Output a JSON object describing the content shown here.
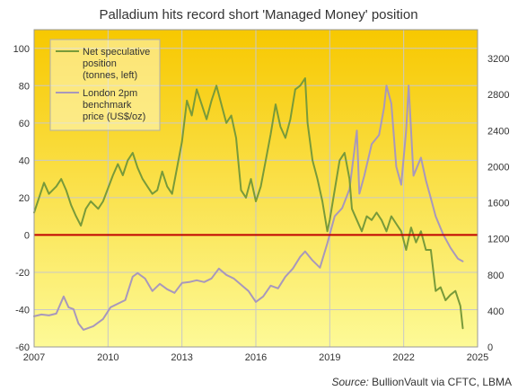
{
  "chart_data": {
    "type": "line",
    "title": "Palladium hits record short 'Managed Money' position",
    "source_prefix": "Source:",
    "source_text": " BullionVault via CFTC, LBMA",
    "x_range": [
      2007,
      2025
    ],
    "x_ticks": [
      "2007",
      "2010",
      "2013",
      "2016",
      "2019",
      "2022",
      "2025"
    ],
    "y_left": {
      "range": [
        -60,
        110
      ],
      "ticks": [
        "-60",
        "-40",
        "-20",
        "0",
        "20",
        "40",
        "60",
        "80",
        "100"
      ]
    },
    "y_right": {
      "range": [
        0,
        3520
      ],
      "ticks": [
        "0",
        "400",
        "800",
        "1200",
        "1600",
        "2000",
        "2400",
        "2800",
        "3200"
      ]
    },
    "zero_line": {
      "value": 0,
      "color": "#c00000"
    },
    "grid": true,
    "background_gradient": [
      "#f7c800",
      "#fdfa97"
    ],
    "legend_position": "top-left",
    "series": [
      {
        "name": "Net speculative position (tonnes, left)",
        "name_lines": [
          "Net speculative",
          "position",
          "(tonnes, left)"
        ],
        "axis": "left",
        "color": "#789a3a",
        "points": [
          [
            2007.0,
            12
          ],
          [
            2007.2,
            20
          ],
          [
            2007.4,
            28
          ],
          [
            2007.6,
            22
          ],
          [
            2007.9,
            26
          ],
          [
            2008.1,
            30
          ],
          [
            2008.3,
            24
          ],
          [
            2008.5,
            16
          ],
          [
            2008.7,
            10
          ],
          [
            2008.9,
            5
          ],
          [
            2009.1,
            14
          ],
          [
            2009.3,
            18
          ],
          [
            2009.6,
            14
          ],
          [
            2009.8,
            18
          ],
          [
            2010.0,
            25
          ],
          [
            2010.2,
            32
          ],
          [
            2010.4,
            38
          ],
          [
            2010.6,
            32
          ],
          [
            2010.8,
            40
          ],
          [
            2011.0,
            44
          ],
          [
            2011.2,
            36
          ],
          [
            2011.4,
            30
          ],
          [
            2011.6,
            26
          ],
          [
            2011.8,
            22
          ],
          [
            2012.0,
            24
          ],
          [
            2012.2,
            34
          ],
          [
            2012.4,
            26
          ],
          [
            2012.6,
            22
          ],
          [
            2012.8,
            36
          ],
          [
            2013.0,
            50
          ],
          [
            2013.2,
            72
          ],
          [
            2013.4,
            64
          ],
          [
            2013.6,
            78
          ],
          [
            2013.8,
            70
          ],
          [
            2014.0,
            62
          ],
          [
            2014.2,
            72
          ],
          [
            2014.4,
            80
          ],
          [
            2014.6,
            70
          ],
          [
            2014.8,
            60
          ],
          [
            2015.0,
            64
          ],
          [
            2015.2,
            52
          ],
          [
            2015.4,
            24
          ],
          [
            2015.6,
            20
          ],
          [
            2015.8,
            30
          ],
          [
            2016.0,
            18
          ],
          [
            2016.2,
            26
          ],
          [
            2016.4,
            40
          ],
          [
            2016.6,
            54
          ],
          [
            2016.8,
            70
          ],
          [
            2017.0,
            58
          ],
          [
            2017.2,
            52
          ],
          [
            2017.4,
            62
          ],
          [
            2017.6,
            78
          ],
          [
            2017.8,
            80
          ],
          [
            2018.0,
            84
          ],
          [
            2018.1,
            60
          ],
          [
            2018.3,
            40
          ],
          [
            2018.5,
            30
          ],
          [
            2018.7,
            18
          ],
          [
            2018.9,
            2
          ],
          [
            2019.0,
            8
          ],
          [
            2019.2,
            24
          ],
          [
            2019.4,
            40
          ],
          [
            2019.6,
            44
          ],
          [
            2019.8,
            30
          ],
          [
            2019.9,
            14
          ],
          [
            2020.1,
            8
          ],
          [
            2020.3,
            2
          ],
          [
            2020.5,
            10
          ],
          [
            2020.7,
            8
          ],
          [
            2020.9,
            12
          ],
          [
            2021.1,
            8
          ],
          [
            2021.3,
            2
          ],
          [
            2021.5,
            10
          ],
          [
            2021.7,
            6
          ],
          [
            2021.9,
            2
          ],
          [
            2022.1,
            -8
          ],
          [
            2022.3,
            4
          ],
          [
            2022.5,
            -4
          ],
          [
            2022.7,
            2
          ],
          [
            2022.9,
            -8
          ],
          [
            2023.1,
            -8
          ],
          [
            2023.3,
            -30
          ],
          [
            2023.5,
            -28
          ],
          [
            2023.7,
            -35
          ],
          [
            2023.9,
            -32
          ],
          [
            2024.1,
            -30
          ],
          [
            2024.3,
            -38
          ],
          [
            2024.4,
            -50
          ]
        ]
      },
      {
        "name": "London 2pm benchmark price (US$/oz)",
        "name_lines": [
          "London 2pm",
          "benchmark",
          "price (US$/oz)"
        ],
        "axis": "right",
        "color": "#a898bc",
        "points": [
          [
            2007.0,
            340
          ],
          [
            2007.3,
            360
          ],
          [
            2007.6,
            350
          ],
          [
            2007.9,
            370
          ],
          [
            2008.2,
            560
          ],
          [
            2008.4,
            440
          ],
          [
            2008.6,
            420
          ],
          [
            2008.8,
            260
          ],
          [
            2009.0,
            190
          ],
          [
            2009.4,
            230
          ],
          [
            2009.8,
            310
          ],
          [
            2010.1,
            440
          ],
          [
            2010.4,
            480
          ],
          [
            2010.7,
            520
          ],
          [
            2011.0,
            780
          ],
          [
            2011.2,
            820
          ],
          [
            2011.5,
            760
          ],
          [
            2011.8,
            620
          ],
          [
            2012.1,
            700
          ],
          [
            2012.4,
            640
          ],
          [
            2012.7,
            600
          ],
          [
            2013.0,
            710
          ],
          [
            2013.3,
            720
          ],
          [
            2013.6,
            740
          ],
          [
            2013.9,
            720
          ],
          [
            2014.2,
            760
          ],
          [
            2014.5,
            870
          ],
          [
            2014.8,
            800
          ],
          [
            2015.1,
            760
          ],
          [
            2015.4,
            690
          ],
          [
            2015.7,
            620
          ],
          [
            2016.0,
            500
          ],
          [
            2016.3,
            560
          ],
          [
            2016.6,
            680
          ],
          [
            2016.9,
            650
          ],
          [
            2017.2,
            780
          ],
          [
            2017.5,
            870
          ],
          [
            2017.8,
            1000
          ],
          [
            2018.0,
            1060
          ],
          [
            2018.3,
            960
          ],
          [
            2018.6,
            880
          ],
          [
            2018.9,
            1150
          ],
          [
            2019.2,
            1450
          ],
          [
            2019.5,
            1540
          ],
          [
            2019.8,
            1750
          ],
          [
            2020.1,
            2400
          ],
          [
            2020.2,
            1700
          ],
          [
            2020.4,
            1900
          ],
          [
            2020.7,
            2250
          ],
          [
            2021.0,
            2350
          ],
          [
            2021.2,
            2650
          ],
          [
            2021.3,
            2900
          ],
          [
            2021.5,
            2700
          ],
          [
            2021.7,
            2000
          ],
          [
            2021.9,
            1800
          ],
          [
            2022.1,
            2400
          ],
          [
            2022.2,
            2900
          ],
          [
            2022.4,
            1900
          ],
          [
            2022.7,
            2100
          ],
          [
            2022.9,
            1850
          ],
          [
            2023.1,
            1650
          ],
          [
            2023.3,
            1450
          ],
          [
            2023.6,
            1250
          ],
          [
            2023.9,
            1100
          ],
          [
            2024.2,
            980
          ],
          [
            2024.4,
            950
          ]
        ]
      }
    ]
  }
}
